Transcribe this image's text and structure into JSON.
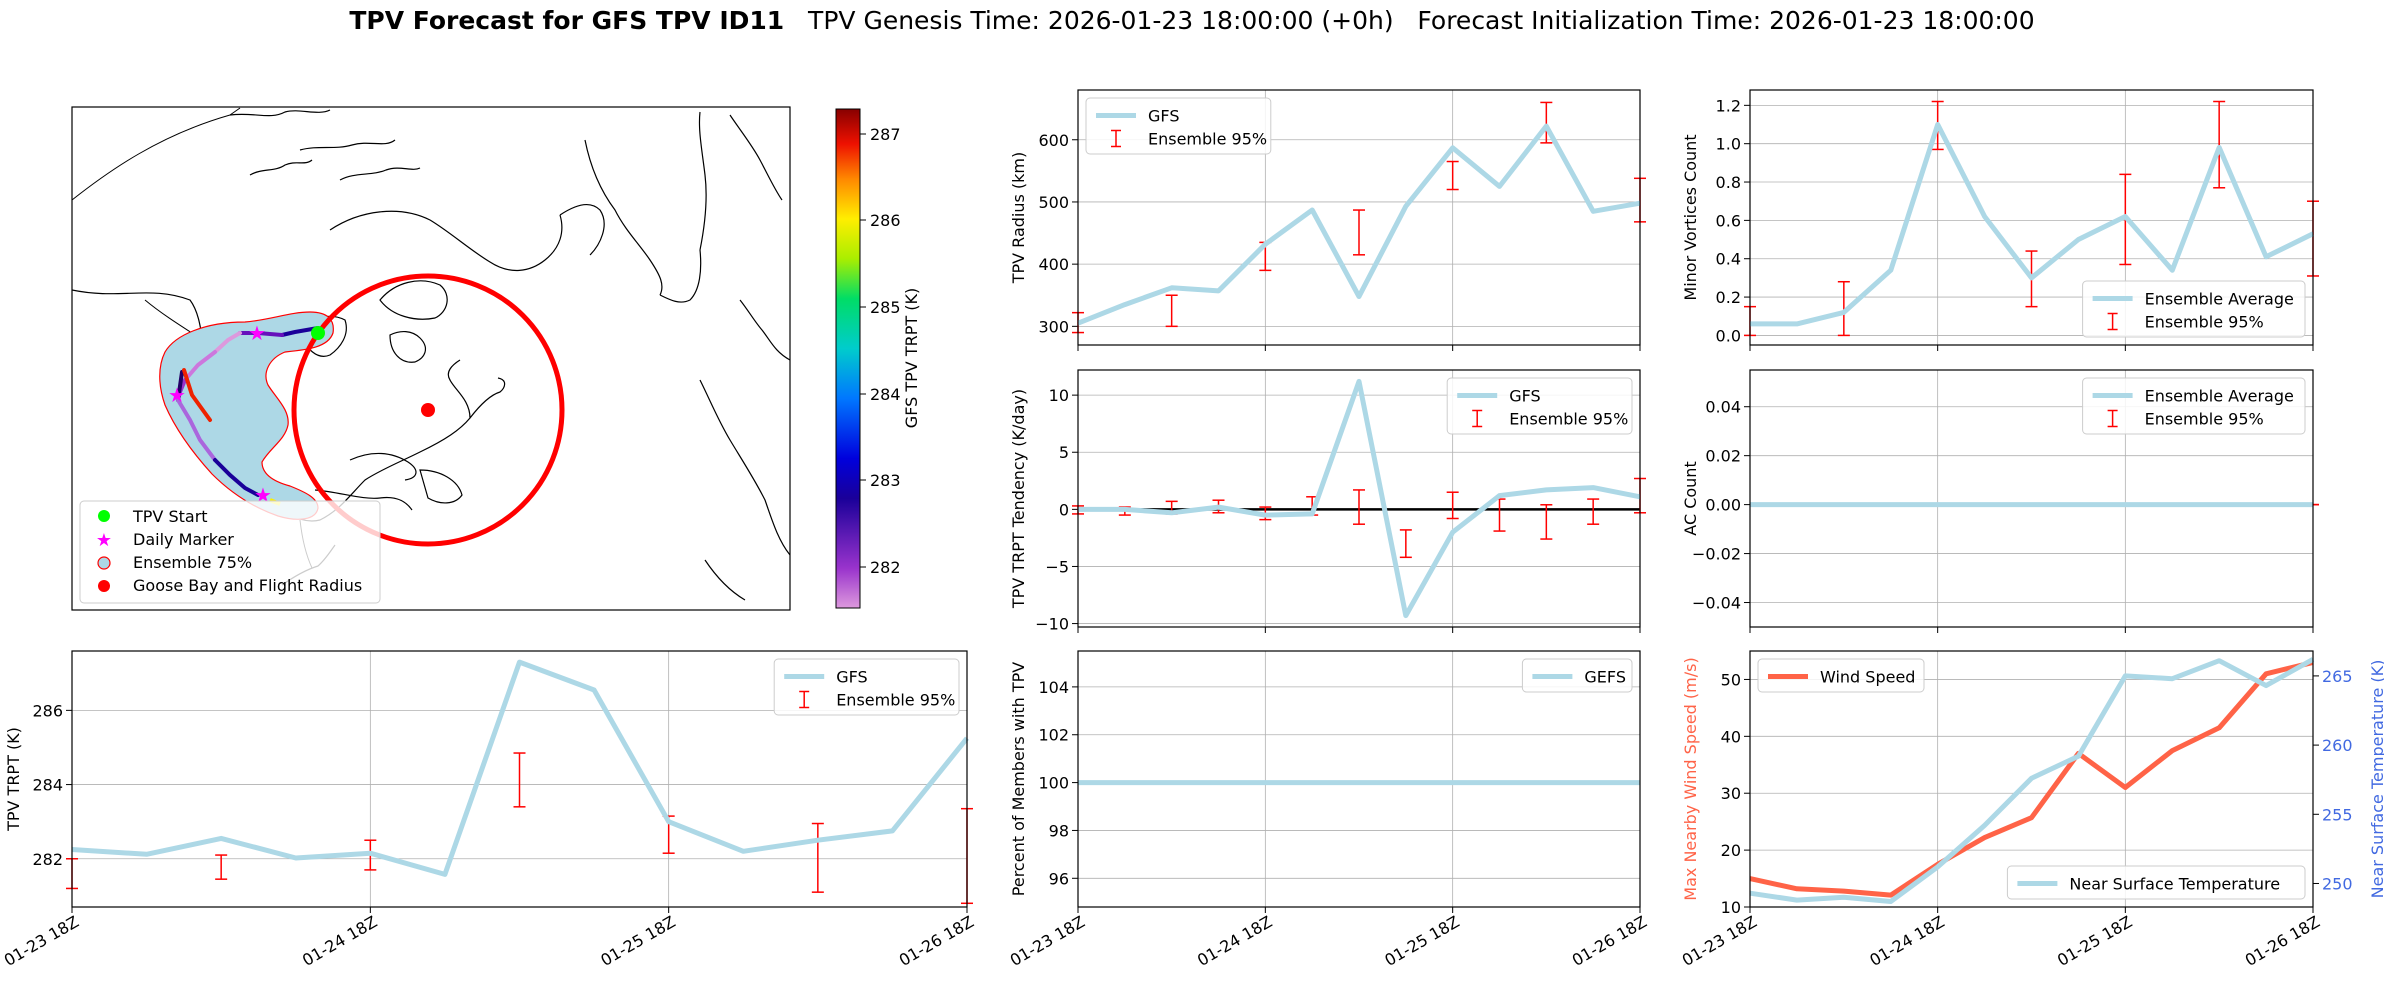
{
  "header": {
    "title_bold": "TPV Forecast for GFS TPV ID11",
    "title_rest": "TPV Genesis Time: 2026-01-23 18:00:00 (+0h)   Forecast Initialization Time: 2026-01-23 18:00:00"
  },
  "colors": {
    "gfs": "#add8e6",
    "ensemble": "#ff0000",
    "wind": "#ff6347",
    "temp_axis": "#4169e1",
    "ensemble75_fill": "#add8e6",
    "ensemble75_edge": "#ff0000",
    "start_marker": "#00ff00",
    "daily_marker": "#ff00ff",
    "goose_bay": "#ff0000"
  },
  "map": {
    "legend": [
      "TPV Start",
      "Daily Marker",
      "Ensemble 75%",
      "Goose Bay and Flight Radius"
    ],
    "colorbar": {
      "label": "GFS TPV TRPT (K)",
      "ticks": [
        "282",
        "283",
        "284",
        "285",
        "286",
        "287"
      ]
    }
  },
  "chart_data": [
    {
      "id": "radius",
      "type": "line",
      "ylabel": "TPV Radius (km)",
      "x_ticks": [
        "01-23 18Z",
        "01-24 18Z",
        "01-25 18Z",
        "01-26 18Z"
      ],
      "xlim": [
        0,
        72
      ],
      "ylim": [
        270,
        680
      ],
      "y_ticks": [
        300,
        400,
        500,
        600
      ],
      "legend": [
        "GFS",
        "Ensemble 95%"
      ],
      "legend_position": "upper-left",
      "grid": true,
      "series": [
        {
          "name": "GFS",
          "x": [
            0,
            6,
            12,
            18,
            24,
            30,
            36,
            42,
            48,
            54,
            60,
            66,
            72
          ],
          "values": [
            305,
            335,
            362,
            357,
            432,
            487,
            348,
            493,
            587,
            525,
            622,
            485,
            498
          ]
        }
      ],
      "error_bars": [
        {
          "x": 0,
          "low": 290,
          "high": 322
        },
        {
          "x": 12,
          "low": 300,
          "high": 350
        },
        {
          "x": 24,
          "low": 390,
          "high": 435
        },
        {
          "x": 36,
          "low": 415,
          "high": 487
        },
        {
          "x": 48,
          "low": 520,
          "high": 565
        },
        {
          "x": 60,
          "low": 595,
          "high": 660
        },
        {
          "x": 72,
          "low": 468,
          "high": 538
        }
      ]
    },
    {
      "id": "minor",
      "type": "line",
      "ylabel": "Minor Vortices Count",
      "x_ticks": [
        "01-23 18Z",
        "01-24 18Z",
        "01-25 18Z",
        "01-26 18Z"
      ],
      "xlim": [
        0,
        72
      ],
      "ylim": [
        -0.05,
        1.28
      ],
      "y_ticks": [
        0.0,
        0.2,
        0.4,
        0.6,
        0.8,
        1.0,
        1.2
      ],
      "legend": [
        "Ensemble Average",
        "Ensemble 95%"
      ],
      "legend_position": "lower-right",
      "grid": true,
      "series": [
        {
          "name": "Ensemble Average",
          "x": [
            0,
            6,
            12,
            18,
            24,
            30,
            36,
            42,
            48,
            54,
            60,
            66,
            72
          ],
          "values": [
            0.06,
            0.06,
            0.12,
            0.34,
            1.1,
            0.62,
            0.3,
            0.5,
            0.62,
            0.34,
            0.98,
            0.41,
            0.53
          ]
        }
      ],
      "error_bars": [
        {
          "x": 0,
          "low": 0.0,
          "high": 0.15
        },
        {
          "x": 12,
          "low": 0.0,
          "high": 0.28
        },
        {
          "x": 24,
          "low": 0.97,
          "high": 1.22
        },
        {
          "x": 36,
          "low": 0.15,
          "high": 0.44
        },
        {
          "x": 48,
          "low": 0.37,
          "high": 0.84
        },
        {
          "x": 60,
          "low": 0.77,
          "high": 1.22
        },
        {
          "x": 72,
          "low": 0.31,
          "high": 0.7
        }
      ]
    },
    {
      "id": "tendency",
      "type": "line",
      "ylabel": "TPV TRPT Tendency (K/day)",
      "x_ticks": [
        "01-23 18Z",
        "01-24 18Z",
        "01-25 18Z",
        "01-26 18Z"
      ],
      "xlim": [
        0,
        72
      ],
      "ylim": [
        -10.3,
        12.2
      ],
      "y_ticks": [
        -10,
        -5,
        0,
        5,
        10
      ],
      "legend": [
        "GFS",
        "Ensemble 95%"
      ],
      "legend_position": "upper-right",
      "grid": true,
      "zero_line": true,
      "series": [
        {
          "name": "GFS",
          "x": [
            0,
            6,
            12,
            18,
            24,
            30,
            36,
            42,
            48,
            54,
            60,
            66,
            72
          ],
          "values": [
            0.0,
            0.0,
            -0.3,
            0.2,
            -0.5,
            -0.4,
            11.2,
            -9.3,
            -2.0,
            1.2,
            1.7,
            1.9,
            1.1
          ]
        }
      ],
      "error_bars": [
        {
          "x": 0,
          "low": -0.4,
          "high": 0.3
        },
        {
          "x": 6,
          "low": -0.5,
          "high": 0.2
        },
        {
          "x": 12,
          "low": -0.4,
          "high": 0.7
        },
        {
          "x": 18,
          "low": -0.3,
          "high": 0.8
        },
        {
          "x": 24,
          "low": -0.9,
          "high": 0.2
        },
        {
          "x": 30,
          "low": -0.5,
          "high": 1.1
        },
        {
          "x": 36,
          "low": -1.3,
          "high": 1.7
        },
        {
          "x": 42,
          "low": -4.2,
          "high": -1.8
        },
        {
          "x": 48,
          "low": -0.8,
          "high": 1.5
        },
        {
          "x": 54,
          "low": -1.9,
          "high": 0.9
        },
        {
          "x": 60,
          "low": -2.6,
          "high": 0.4
        },
        {
          "x": 66,
          "low": -1.3,
          "high": 0.9
        },
        {
          "x": 72,
          "low": -0.3,
          "high": 2.7
        }
      ]
    },
    {
      "id": "ac",
      "type": "line",
      "ylabel": "AC Count",
      "x_ticks": [
        "01-23 18Z",
        "01-24 18Z",
        "01-25 18Z",
        "01-26 18Z"
      ],
      "xlim": [
        0,
        72
      ],
      "ylim": [
        -0.05,
        0.055
      ],
      "y_ticks": [
        -0.04,
        -0.02,
        0.0,
        0.02,
        0.04
      ],
      "y_tick_labels": [
        "−0.04",
        "−0.02",
        "0.00",
        "0.02",
        "0.04"
      ],
      "legend": [
        "Ensemble Average",
        "Ensemble 95%"
      ],
      "legend_position": "upper-right",
      "grid": true,
      "series": [
        {
          "name": "Ensemble Average",
          "x": [
            0,
            6,
            12,
            18,
            24,
            30,
            36,
            42,
            48,
            54,
            60,
            66,
            72
          ],
          "values": [
            0,
            0,
            0,
            0,
            0,
            0,
            0,
            0,
            0,
            0,
            0,
            0,
            0
          ]
        }
      ],
      "error_bars": [
        {
          "x": 12,
          "low": 0,
          "high": 0
        },
        {
          "x": 24,
          "low": 0,
          "high": 0
        },
        {
          "x": 36,
          "low": 0,
          "high": 0
        },
        {
          "x": 48,
          "low": 0,
          "high": 0
        },
        {
          "x": 60,
          "low": 0,
          "high": 0
        },
        {
          "x": 72,
          "low": 0,
          "high": 0
        }
      ]
    },
    {
      "id": "trpt",
      "type": "line",
      "ylabel": "TPV TRPT (K)",
      "x_ticks": [
        "01-23 18Z",
        "01-24 18Z",
        "01-25 18Z",
        "01-26 18Z"
      ],
      "xlim": [
        0,
        72
      ],
      "ylim": [
        280.7,
        287.6
      ],
      "y_ticks": [
        282,
        284,
        286
      ],
      "legend": [
        "GFS",
        "Ensemble 95%"
      ],
      "legend_position": "upper-right",
      "grid": true,
      "series": [
        {
          "name": "GFS",
          "x": [
            0,
            6,
            12,
            18,
            24,
            30,
            36,
            42,
            48,
            54,
            60,
            66,
            72
          ],
          "values": [
            282.25,
            282.12,
            282.55,
            282.02,
            282.15,
            281.58,
            287.3,
            286.55,
            283.0,
            282.2,
            282.5,
            282.75,
            285.25
          ]
        }
      ],
      "error_bars": [
        {
          "x": 0,
          "low": 281.2,
          "high": 282.0
        },
        {
          "x": 12,
          "low": 281.45,
          "high": 282.1
        },
        {
          "x": 24,
          "low": 281.7,
          "high": 282.5
        },
        {
          "x": 36,
          "low": 283.4,
          "high": 284.85
        },
        {
          "x": 48,
          "low": 282.15,
          "high": 283.15
        },
        {
          "x": 60,
          "low": 281.1,
          "high": 282.95
        },
        {
          "x": 72,
          "low": 280.8,
          "high": 283.35
        }
      ]
    },
    {
      "id": "members",
      "type": "line",
      "ylabel": "Percent of Members with TPV",
      "x_ticks": [
        "01-23 18Z",
        "01-24 18Z",
        "01-25 18Z",
        "01-26 18Z"
      ],
      "xlim": [
        0,
        72
      ],
      "ylim": [
        94.8,
        105.5
      ],
      "y_ticks": [
        96,
        98,
        100,
        102,
        104
      ],
      "legend": [
        "GEFS"
      ],
      "legend_position": "upper-right",
      "grid": true,
      "series": [
        {
          "name": "GEFS",
          "x": [
            0,
            72
          ],
          "values": [
            100,
            100
          ]
        }
      ]
    },
    {
      "id": "wind_temp",
      "type": "line",
      "ylabel": "Max Nearby Wind Speed (m/s)",
      "ylabel_right": "Near Surface Temperature (K)",
      "x_ticks": [
        "01-23 18Z",
        "01-24 18Z",
        "01-25 18Z",
        "01-26 18Z"
      ],
      "xlim": [
        0,
        72
      ],
      "ylim": [
        10,
        55
      ],
      "y_ticks": [
        10,
        20,
        30,
        40,
        50
      ],
      "ylim_right": [
        248.3,
        266.8
      ],
      "y_ticks_right": [
        250,
        255,
        260,
        265
      ],
      "legend": [
        "Wind Speed"
      ],
      "legend_right": [
        "Near Surface Temperature"
      ],
      "grid": true,
      "series": [
        {
          "name": "Wind Speed",
          "axis": "left",
          "x": [
            0,
            6,
            12,
            18,
            24,
            30,
            36,
            42,
            48,
            54,
            60,
            66,
            72
          ],
          "values": [
            15.0,
            13.2,
            12.8,
            12.1,
            17.5,
            22.2,
            25.7,
            37.0,
            31.0,
            37.5,
            41.5,
            51.0,
            53.0
          ]
        },
        {
          "name": "Near Surface Temperature",
          "axis": "right",
          "x": [
            0,
            6,
            12,
            18,
            24,
            30,
            36,
            42,
            48,
            54,
            60,
            66,
            72
          ],
          "values": [
            249.3,
            248.8,
            249.0,
            248.7,
            251.2,
            254.2,
            257.6,
            259.2,
            265.0,
            264.8,
            266.1,
            264.3,
            266.2
          ]
        }
      ]
    }
  ]
}
